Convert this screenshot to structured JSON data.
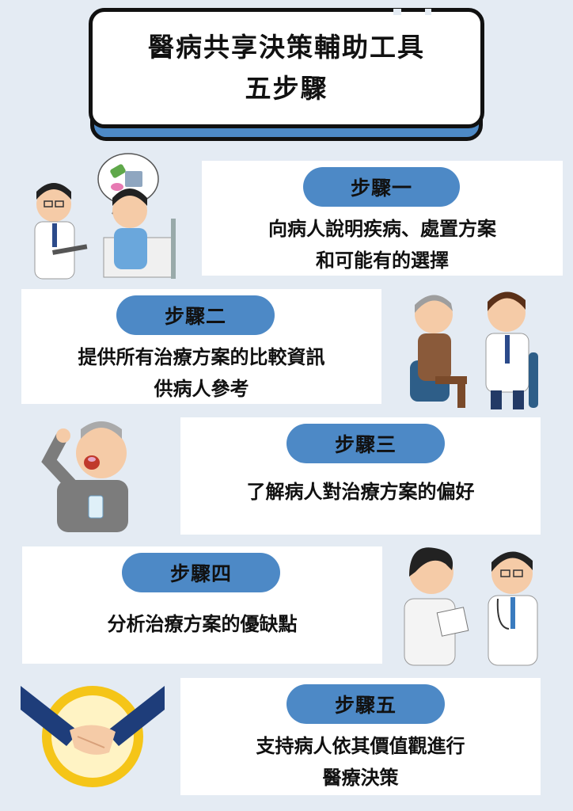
{
  "title": {
    "line1": "醫病共享決策輔助工具",
    "line2": "五步驟"
  },
  "steps": [
    {
      "label": "步驟一",
      "line1": "向病人說明疾病、處置方案",
      "line2": "和可能有的選擇",
      "illustration": "doctor-explaining-to-patient-in-bed"
    },
    {
      "label": "步驟二",
      "line1": "提供所有治療方案的比較資訊",
      "line2": "供病人參考",
      "illustration": "doctor-talking-to-elderly-patient"
    },
    {
      "label": "步驟三",
      "line1": "了解病人對治療方案的偏好",
      "line2": "",
      "illustration": "elderly-man-taking-pill"
    },
    {
      "label": "步驟四",
      "line1": "分析治療方案的優缺點",
      "line2": "",
      "illustration": "two-doctors-reviewing-chart"
    },
    {
      "label": "步驟五",
      "line1": "支持病人依其價值觀進行",
      "line2": "醫療決策",
      "illustration": "handshake-icon"
    }
  ],
  "colors": {
    "background": "#e4ebf3",
    "accent": "#4d89c6",
    "card": "#ffffff",
    "text": "#111111"
  }
}
